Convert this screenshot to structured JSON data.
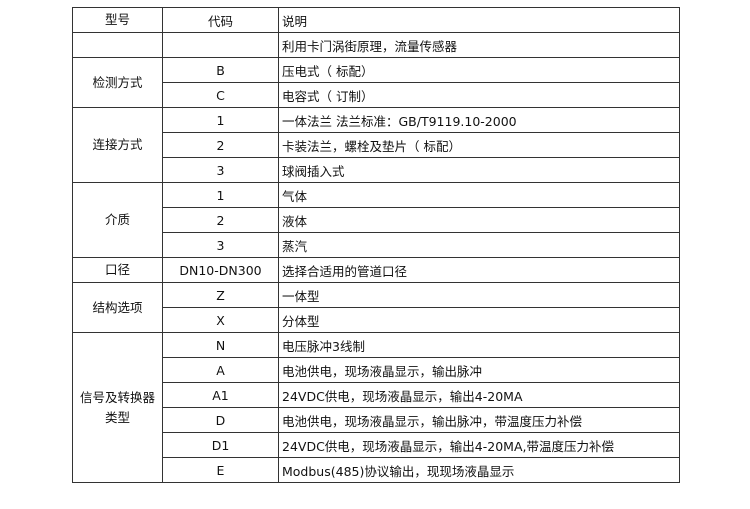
{
  "table": {
    "header": [
      "型号",
      "代码",
      "说明"
    ],
    "groups": [
      {
        "rows": [
          {
            "description": "利用卡门涡街原理，流量传感器"
          }
        ]
      },
      {
        "label": "检测方式",
        "rows": [
          {
            "code": "B",
            "description": "压电式（ 标配）"
          },
          {
            "code": "C",
            "description": "电容式（ 订制）"
          }
        ]
      },
      {
        "label": "连接方式",
        "rows": [
          {
            "code": "1",
            "description": "一体法兰  法兰标准：GB/T9119.10-2000"
          },
          {
            "code": "2",
            "description": "卡装法兰，螺栓及垫片（ 标配）"
          },
          {
            "code": "3",
            "description": "球阀插入式"
          }
        ]
      },
      {
        "label": "介质",
        "rows": [
          {
            "code": "1",
            "description": "气体"
          },
          {
            "code": "2",
            "description": "液体"
          },
          {
            "code": "3",
            "description": "蒸汽"
          }
        ]
      },
      {
        "label": "口径",
        "rows": [
          {
            "code": "DN10-DN300",
            "description": "选择合适用的管道口径"
          }
        ]
      },
      {
        "label": "结构选项",
        "rows": [
          {
            "code": "Z",
            "description": "一体型"
          },
          {
            "code": "X",
            "description": "分体型"
          }
        ]
      },
      {
        "label": "信号及转换器类型",
        "rows": [
          {
            "code": "N",
            "description": "电压脉冲3线制"
          },
          {
            "code": "A",
            "description": "电池供电，现场液晶显示，输出脉冲"
          },
          {
            "code": "A1",
            "description": "24VDC供电，现场液晶显示，输出4-20MA"
          },
          {
            "code": "D",
            "description": "电池供电，现场液晶显示，输出脉冲，带温度压力补偿"
          },
          {
            "code": "D1",
            "description": "24VDC供电，现场液晶显示，输出4-20MA,带温度压力补偿"
          },
          {
            "code": "E",
            "description": "Modbus(485)协议输出，现现场液晶显示"
          }
        ]
      }
    ]
  }
}
